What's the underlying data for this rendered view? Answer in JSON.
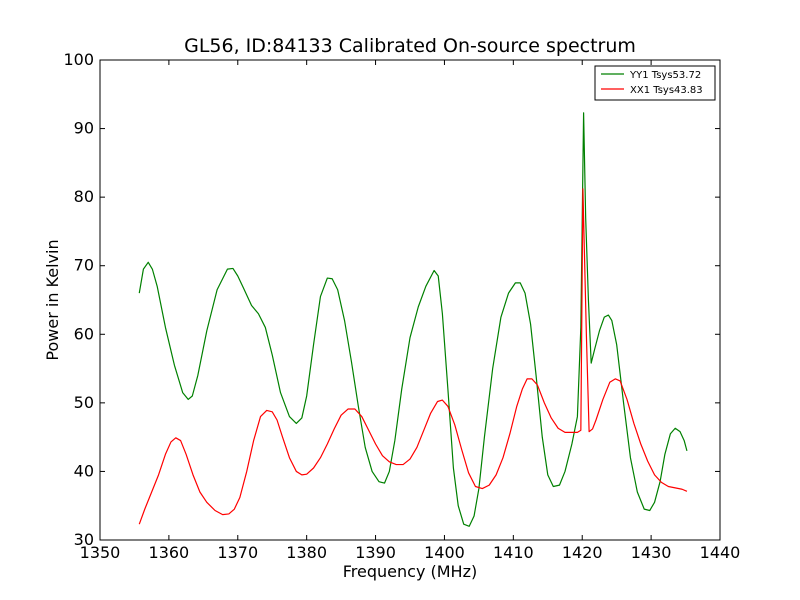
{
  "chart_data": {
    "type": "line",
    "title": "GL56, ID:84133 Calibrated On-source spectrum",
    "xlabel": "Frequency (MHz)",
    "ylabel": "Power in Kelvin",
    "xlim": [
      1350,
      1440
    ],
    "ylim": [
      30,
      100
    ],
    "xticks": [
      "1350",
      "1360",
      "1370",
      "1380",
      "1390",
      "1400",
      "1410",
      "1420",
      "1430",
      "1440"
    ],
    "yticks": [
      "30",
      "40",
      "50",
      "60",
      "70",
      "80",
      "90",
      "100"
    ],
    "grid": false,
    "legend_position": "top-right",
    "series": [
      {
        "name": "YY1 Tsys53.72",
        "color": "#008000",
        "x": [
          1355.7,
          1356.3,
          1357.0,
          1357.6,
          1358.3,
          1359.5,
          1360.8,
          1362.0,
          1362.8,
          1363.4,
          1364.2,
          1365.5,
          1367.0,
          1368.5,
          1369.3,
          1370.0,
          1370.8,
          1372.0,
          1373.0,
          1374.0,
          1375.0,
          1376.2,
          1377.5,
          1378.5,
          1379.3,
          1380.0,
          1381.0,
          1382.0,
          1383.0,
          1383.7,
          1384.5,
          1385.5,
          1386.5,
          1387.5,
          1388.5,
          1389.5,
          1390.5,
          1391.3,
          1392.0,
          1392.8,
          1393.8,
          1395.0,
          1396.2,
          1397.3,
          1398.5,
          1399.1,
          1399.7,
          1400.5,
          1401.3,
          1402.0,
          1402.8,
          1403.6,
          1404.3,
          1405.0,
          1405.8,
          1407.0,
          1408.2,
          1409.3,
          1410.3,
          1411.0,
          1411.7,
          1412.5,
          1413.3,
          1414.2,
          1415.0,
          1415.8,
          1416.7,
          1417.5,
          1418.5,
          1419.3,
          1419.8,
          1420.2,
          1420.5,
          1420.9,
          1421.3,
          1421.8,
          1422.5,
          1423.2,
          1423.8,
          1424.3,
          1425.0,
          1426.0,
          1427.0,
          1428.0,
          1429.0,
          1429.8,
          1430.5,
          1431.3,
          1432.0,
          1432.8,
          1433.5,
          1434.2,
          1434.8,
          1435.2
        ],
        "values": [
          66.0,
          69.5,
          70.5,
          69.5,
          67.0,
          61.0,
          55.5,
          51.5,
          50.5,
          51.0,
          54.0,
          60.5,
          66.5,
          69.5,
          69.6,
          68.5,
          66.8,
          64.2,
          63.0,
          61.0,
          57.0,
          51.5,
          48.0,
          47.0,
          47.8,
          51.0,
          58.5,
          65.5,
          68.2,
          68.1,
          66.5,
          62.0,
          56.0,
          49.5,
          43.5,
          40.0,
          38.5,
          38.3,
          40.0,
          44.5,
          52.0,
          59.5,
          64.0,
          67.0,
          69.3,
          68.5,
          63.0,
          52.0,
          40.5,
          35.0,
          32.3,
          32.0,
          33.5,
          37.5,
          45.0,
          55.0,
          62.5,
          66.0,
          67.5,
          67.5,
          66.0,
          61.5,
          54.0,
          45.0,
          39.5,
          37.8,
          38.0,
          40.0,
          44.0,
          48.0,
          61.0,
          92.3,
          77.0,
          65.0,
          55.8,
          57.8,
          60.5,
          62.5,
          62.8,
          62.0,
          58.5,
          50.0,
          42.0,
          37.0,
          34.5,
          34.3,
          35.5,
          38.5,
          42.5,
          45.5,
          46.3,
          45.8,
          44.5,
          43.0
        ]
      },
      {
        "name": "XX1 Tsys43.83",
        "color": "#ff0000",
        "x": [
          1355.7,
          1356.5,
          1357.5,
          1358.5,
          1359.5,
          1360.3,
          1361.0,
          1361.7,
          1362.5,
          1363.5,
          1364.5,
          1365.5,
          1366.7,
          1367.8,
          1368.7,
          1369.5,
          1370.3,
          1371.3,
          1372.3,
          1373.3,
          1374.2,
          1375.0,
          1375.7,
          1376.5,
          1377.5,
          1378.5,
          1379.3,
          1380.0,
          1381.0,
          1382.0,
          1383.0,
          1384.0,
          1385.0,
          1386.0,
          1387.0,
          1388.0,
          1389.0,
          1390.0,
          1391.0,
          1392.0,
          1393.0,
          1394.0,
          1395.0,
          1396.0,
          1397.0,
          1398.0,
          1399.0,
          1399.7,
          1400.5,
          1401.5,
          1402.5,
          1403.5,
          1404.5,
          1405.5,
          1406.5,
          1407.5,
          1408.5,
          1409.5,
          1410.5,
          1411.3,
          1412.0,
          1412.7,
          1413.5,
          1414.5,
          1415.5,
          1416.5,
          1417.5,
          1418.5,
          1419.3,
          1419.8,
          1420.1,
          1420.6,
          1421.0,
          1421.5,
          1422.0,
          1423.0,
          1424.0,
          1424.8,
          1425.5,
          1426.5,
          1427.5,
          1428.5,
          1429.5,
          1430.5,
          1431.5,
          1432.5,
          1433.5,
          1434.5,
          1435.2
        ],
        "values": [
          32.3,
          34.5,
          37.0,
          39.5,
          42.5,
          44.3,
          44.9,
          44.5,
          42.5,
          39.5,
          37.0,
          35.5,
          34.3,
          33.7,
          33.8,
          34.5,
          36.2,
          40.0,
          44.5,
          48.0,
          48.9,
          48.7,
          47.5,
          45.0,
          42.0,
          40.0,
          39.5,
          39.6,
          40.5,
          42.0,
          44.0,
          46.2,
          48.2,
          49.1,
          49.1,
          48.0,
          46.0,
          44.0,
          42.3,
          41.4,
          41.0,
          41.0,
          41.8,
          43.5,
          46.0,
          48.5,
          50.2,
          50.4,
          49.5,
          46.8,
          43.2,
          39.8,
          37.8,
          37.5,
          38.0,
          39.5,
          42.0,
          45.5,
          49.5,
          52.0,
          53.5,
          53.5,
          52.6,
          50.0,
          47.8,
          46.3,
          45.7,
          45.7,
          45.7,
          46.0,
          81.2,
          60.0,
          45.8,
          46.2,
          47.5,
          50.5,
          53.0,
          53.5,
          53.2,
          50.5,
          47.0,
          44.0,
          41.5,
          39.5,
          38.4,
          37.8,
          37.6,
          37.4,
          37.1
        ]
      }
    ]
  }
}
